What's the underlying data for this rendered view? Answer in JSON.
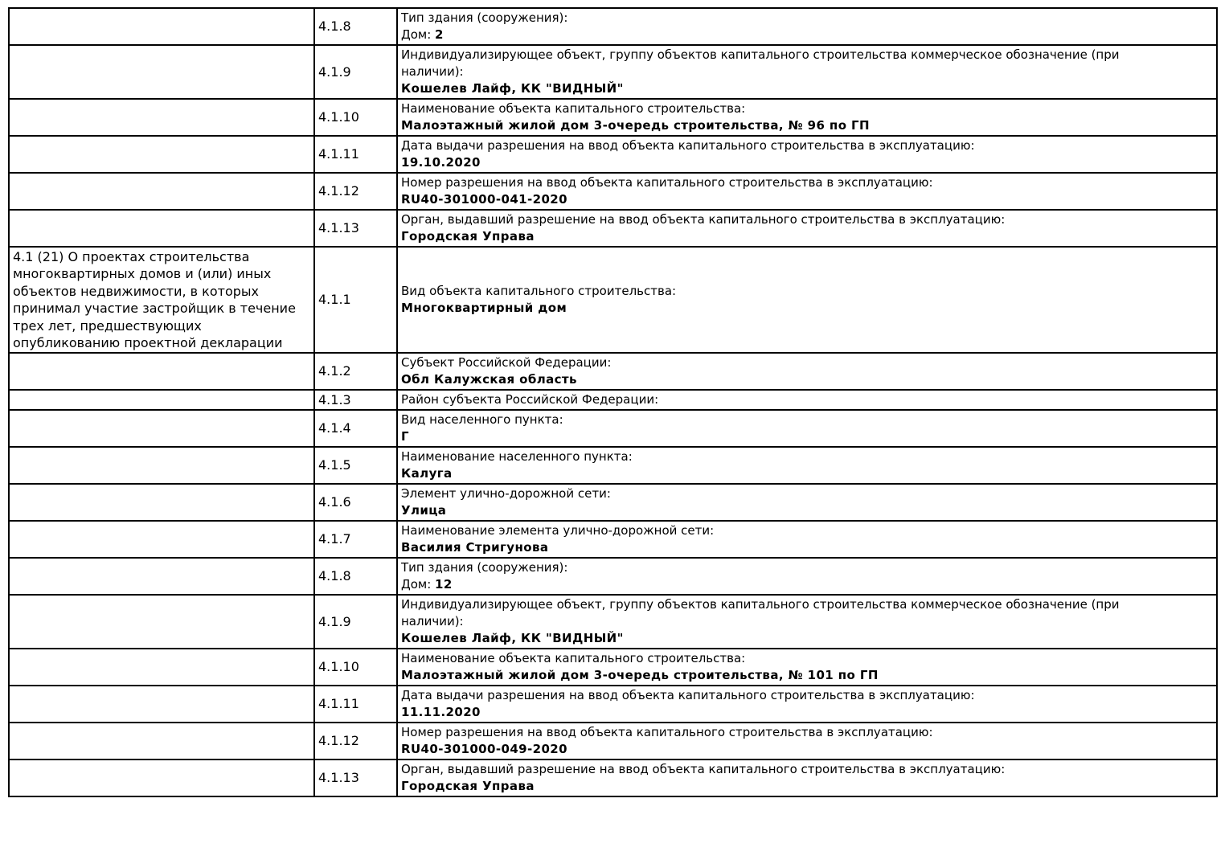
{
  "table": {
    "rows": [
      {
        "section": "",
        "num": "4.1.8",
        "label": "Тип здания (сооружения):",
        "value_prefix": "Дом: ",
        "value": "2"
      },
      {
        "section": "",
        "num": "4.1.9",
        "label": "Индивидуализирующее объект, группу объектов капитального строительства коммерческое обозначение (при наличии):",
        "value_prefix": "",
        "value": "Кошелев Лайф, КК \"ВИДНЫЙ\""
      },
      {
        "section": "",
        "num": "4.1.10",
        "label": "Наименование объекта капитального строительства:",
        "value_prefix": "",
        "value": "Малоэтажный жилой дом 3-очередь строительства, № 96 по ГП"
      },
      {
        "section": "",
        "num": "4.1.11",
        "label": "Дата выдачи разрешения на ввод объекта капитального строительства в эксплуатацию:",
        "value_prefix": "",
        "value": "19.10.2020"
      },
      {
        "section": "",
        "num": "4.1.12",
        "label": "Номер разрешения на ввод объекта капитального строительства в эксплуатацию:",
        "value_prefix": "",
        "value": "RU40-301000-041-2020"
      },
      {
        "section": "",
        "num": "4.1.13",
        "label": "Орган, выдавший разрешение на ввод объекта капитального строительства в эксплуатацию:",
        "value_prefix": "",
        "value": "Городская Управа"
      },
      {
        "section": "4.1 (21) О проектах строительства многоквартирных домов и (или) иных объектов недвижимости, в которых принимал участие застройщик в течение трех лет, предшествующих опубликованию проектной декларации",
        "num": "4.1.1",
        "label": "Вид объекта капитального строительства:",
        "value_prefix": "",
        "value": "Многоквартирный дом"
      },
      {
        "section": "",
        "num": "4.1.2",
        "label": "Субъект Российской Федерации:",
        "value_prefix": "",
        "value": "Обл Калужская область"
      },
      {
        "section": "",
        "num": "4.1.3",
        "label": "Район субъекта Российской Федерации:",
        "value_prefix": "",
        "value": ""
      },
      {
        "section": "",
        "num": "4.1.4",
        "label": "Вид населенного пункта:",
        "value_prefix": "",
        "value": "Г"
      },
      {
        "section": "",
        "num": "4.1.5",
        "label": "Наименование населенного пункта:",
        "value_prefix": "",
        "value": "Калуга"
      },
      {
        "section": "",
        "num": "4.1.6",
        "label": "Элемент улично-дорожной сети:",
        "value_prefix": "",
        "value": "Улица"
      },
      {
        "section": "",
        "num": "4.1.7",
        "label": "Наименование элемента улично-дорожной сети:",
        "value_prefix": "",
        "value": "Василия Стригунова"
      },
      {
        "section": "",
        "num": "4.1.8",
        "label": "Тип здания (сооружения):",
        "value_prefix": "Дом: ",
        "value": "12"
      },
      {
        "section": "",
        "num": "4.1.9",
        "label": "Индивидуализирующее объект, группу объектов капитального строительства коммерческое обозначение (при наличии):",
        "value_prefix": "",
        "value": "Кошелев Лайф, КК \"ВИДНЫЙ\""
      },
      {
        "section": "",
        "num": "4.1.10",
        "label": "Наименование объекта капитального строительства:",
        "value_prefix": "",
        "value": "Малоэтажный жилой дом 3-очередь строительства, № 101 по ГП"
      },
      {
        "section": "",
        "num": "4.1.11",
        "label": "Дата выдачи разрешения на ввод объекта капитального строительства в эксплуатацию:",
        "value_prefix": "",
        "value": "11.11.2020"
      },
      {
        "section": "",
        "num": "4.1.12",
        "label": "Номер разрешения на ввод объекта капитального строительства в эксплуатацию:",
        "value_prefix": "",
        "value": "RU40-301000-049-2020"
      },
      {
        "section": "",
        "num": "4.1.13",
        "label": "Орган, выдавший разрешение на ввод объекта капитального строительства в эксплуатацию:",
        "value_prefix": "",
        "value": "Городская Управа"
      }
    ]
  }
}
